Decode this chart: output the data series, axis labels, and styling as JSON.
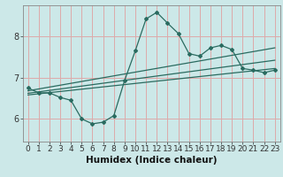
{
  "title": "",
  "xlabel": "Humidex (Indice chaleur)",
  "bg_color": "#cce8e8",
  "line_color": "#2a6b60",
  "grid_color": "#ddaaaa",
  "xlim": [
    -0.5,
    23.5
  ],
  "ylim": [
    5.45,
    8.75
  ],
  "yticks": [
    6,
    7,
    8
  ],
  "xticks": [
    0,
    1,
    2,
    3,
    4,
    5,
    6,
    7,
    8,
    9,
    10,
    11,
    12,
    13,
    14,
    15,
    16,
    17,
    18,
    19,
    20,
    21,
    22,
    23
  ],
  "main_x": [
    0,
    1,
    2,
    3,
    4,
    5,
    6,
    7,
    8,
    9,
    10,
    11,
    12,
    13,
    14,
    15,
    16,
    17,
    18,
    19,
    20,
    21,
    22,
    23
  ],
  "main_y": [
    6.75,
    6.63,
    6.63,
    6.52,
    6.45,
    6.0,
    5.88,
    5.92,
    6.08,
    6.93,
    7.65,
    8.42,
    8.58,
    8.32,
    8.07,
    7.58,
    7.52,
    7.72,
    7.78,
    7.68,
    7.22,
    7.18,
    7.12,
    7.18
  ],
  "line2_x": [
    0,
    23
  ],
  "line2_y": [
    6.68,
    7.72
  ],
  "line3_x": [
    0,
    23
  ],
  "line3_y": [
    6.62,
    7.42
  ],
  "line4_x": [
    0,
    23
  ],
  "line4_y": [
    6.58,
    7.22
  ],
  "marker": "D",
  "markersize": 2.0,
  "linewidth": 0.9,
  "xlabel_fontsize": 7.5,
  "tick_fontsize": 6.5
}
